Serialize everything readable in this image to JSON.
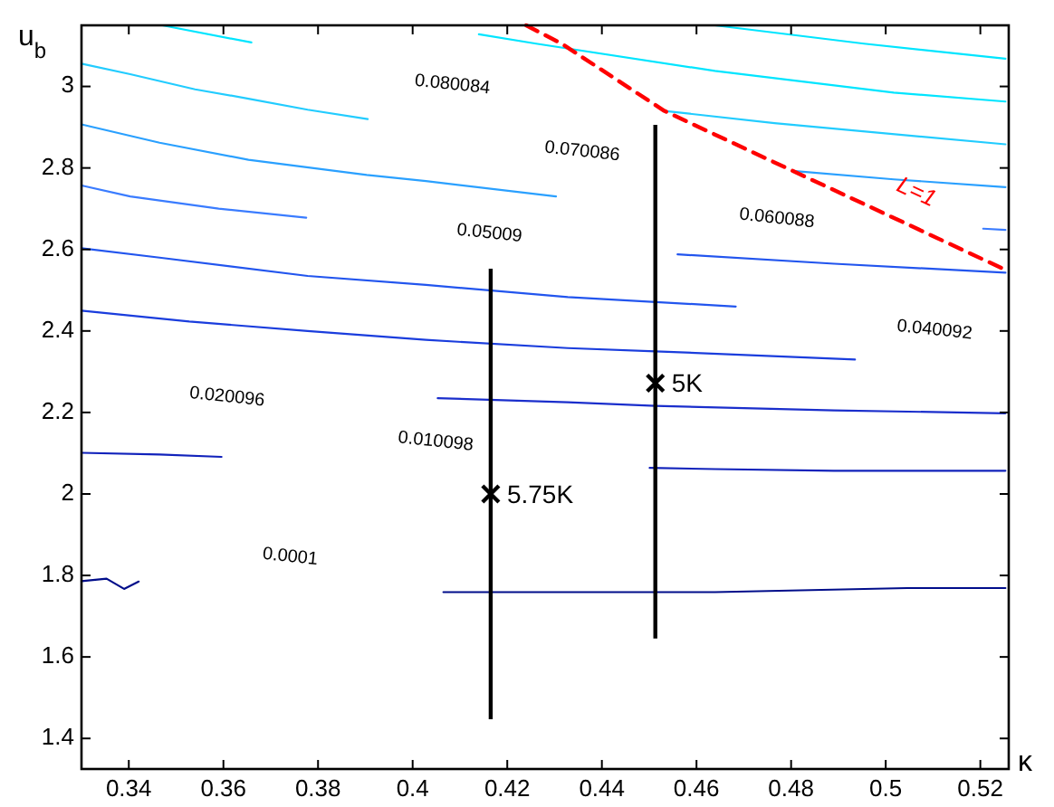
{
  "chart_data": {
    "type": "line",
    "xlabel": "κ",
    "ylabel": "u$_{b}$",
    "xlim": [
      0.33,
      0.526
    ],
    "ylim": [
      1.325,
      3.15
    ],
    "xticks": [
      0.34,
      0.36,
      0.38,
      0.4,
      0.42,
      0.44,
      0.46,
      0.48,
      0.5,
      0.52
    ],
    "yticks": [
      1.4,
      1.6,
      1.8,
      2,
      2.2,
      2.4,
      2.6,
      2.8,
      3
    ],
    "grid": false,
    "marker": "none",
    "series": [
      {
        "color": "#00e5ff",
        "x": [
          0.3471,
          0.3659
        ],
        "values": [
          3.15,
          3.108
        ]
      },
      {
        "color": "#22ccff",
        "x": [
          0.33,
          0.3403,
          0.354,
          0.3653,
          0.3778,
          0.3905
        ],
        "values": [
          3.056,
          3.03,
          2.993,
          2.97,
          2.943,
          2.92
        ]
      },
      {
        "color": "#2aa0ff",
        "x": [
          0.33,
          0.3465,
          0.3653,
          0.3903,
          0.4028,
          0.4303
        ],
        "values": [
          2.907,
          2.862,
          2.82,
          2.783,
          2.768,
          2.73
        ]
      },
      {
        "color": "#3a7cff",
        "x": [
          0.33,
          0.3403,
          0.359,
          0.3775
        ],
        "values": [
          2.757,
          2.73,
          2.7,
          2.678
        ]
      },
      {
        "color": "#2255ee",
        "x": [
          0.33,
          0.3465,
          0.3778,
          0.4028,
          0.4328,
          0.4683
        ],
        "values": [
          2.603,
          2.58,
          2.535,
          2.513,
          2.483,
          2.46
        ]
      },
      {
        "color": "#1a3ddd",
        "x": [
          0.33,
          0.3528,
          0.3778,
          0.4028,
          0.4328,
          0.4513,
          0.4935
        ],
        "values": [
          2.45,
          2.423,
          2.4,
          2.378,
          2.358,
          2.35,
          2.33
        ]
      },
      {
        "color": "#1a2ecc",
        "x": [
          0.4053,
          0.4328,
          0.4513,
          0.4891,
          0.5253
        ],
        "values": [
          2.235,
          2.225,
          2.216,
          2.205,
          2.198
        ]
      },
      {
        "color": "#1122bb",
        "x": [
          0.33,
          0.3465,
          0.3596
        ],
        "values": [
          2.101,
          2.097,
          2.091
        ]
      },
      {
        "color": "#1122bb",
        "x": [
          0.4501,
          0.4639,
          0.4891,
          0.5253
        ],
        "values": [
          2.064,
          2.061,
          2.057,
          2.057
        ]
      },
      {
        "color": "#000d8a",
        "x": [
          0.33,
          0.3353,
          0.339,
          0.3421
        ],
        "values": [
          1.786,
          1.792,
          1.767,
          1.785
        ]
      },
      {
        "color": "#000d8a",
        "x": [
          0.4065,
          0.43,
          0.4639,
          0.5045,
          0.5253
        ],
        "values": [
          1.759,
          1.759,
          1.759,
          1.769,
          1.769
        ]
      },
      {
        "color": "#00e5ff",
        "x": [
          0.4639,
          0.4954,
          0.5253
        ],
        "values": [
          3.15,
          3.105,
          3.068
        ]
      },
      {
        "color": "#00e5ff",
        "x": [
          0.414,
          0.4261,
          0.4639,
          0.5017,
          0.5253
        ],
        "values": [
          3.128,
          3.105,
          3.038,
          2.985,
          2.963
        ]
      },
      {
        "color": "#22ccff",
        "x": [
          0.4532,
          0.4765,
          0.5253
        ],
        "values": [
          2.94,
          2.91,
          2.858
        ]
      },
      {
        "color": "#2aa0ff",
        "x": [
          0.4803,
          0.5017,
          0.5253
        ],
        "values": [
          2.793,
          2.772,
          2.753
        ]
      },
      {
        "color": "#3a7cff",
        "x": [
          0.5206,
          0.5253
        ],
        "values": [
          2.651,
          2.648
        ]
      },
      {
        "color": "#2255ee",
        "x": [
          0.456,
          0.4891,
          0.5253
        ],
        "values": [
          2.588,
          2.565,
          2.543
        ]
      },
      {
        "name": "L=1",
        "color": "#ff0000",
        "line_style": "dashed",
        "x": [
          0.424,
          0.4315,
          0.4532,
          0.4803,
          0.5253
        ],
        "values": [
          3.15,
          3.105,
          2.94,
          2.793,
          2.55
        ]
      },
      {
        "type": "scatter",
        "marker": "cross",
        "color": "#000000",
        "x": [
          0.4165,
          0.4513
        ],
        "values": [
          2.0,
          2.272
        ],
        "errors": [
          [
            1.447,
            2.553
          ],
          [
            1.645,
            2.906
          ]
        ]
      }
    ],
    "annotations": [
      "0.080084",
      "0.070086",
      "0.060088",
      "0.05009",
      "0.040092",
      "0.020096",
      "0.010098",
      "0.0001",
      {
        "text": "5.75K",
        "x": 0.4165,
        "y": 2.0
      },
      {
        "text": "5K",
        "x": 0.4513,
        "y": 2.272
      }
    ]
  }
}
